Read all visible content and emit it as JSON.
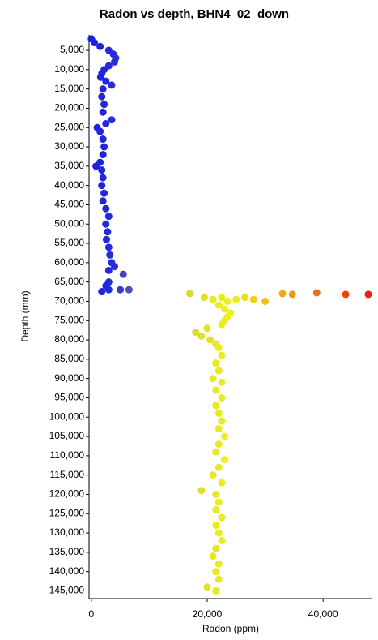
{
  "chart_data": {
    "type": "scatter",
    "title": "Radon vs depth, BHN4_02_down",
    "x_label": "Radon (ppm)",
    "y_label": "Depth (mm)",
    "y_inverted": true,
    "xlim": [
      -400,
      48500
    ],
    "ylim": [
      1000,
      147000
    ],
    "xticks": [
      0,
      {
        "value": 20000,
        "label": "20,000"
      },
      {
        "value": 40000,
        "label": "40,000"
      }
    ],
    "yticks": [
      {
        "value": 5000,
        "label": "5,000"
      },
      {
        "value": 10000,
        "label": "10,000"
      },
      {
        "value": 15000,
        "label": "15,000"
      },
      {
        "value": 20000,
        "label": "20,000"
      },
      {
        "value": 25000,
        "label": "25,000"
      },
      {
        "value": 30000,
        "label": "30,000"
      },
      {
        "value": 35000,
        "label": "35,000"
      },
      {
        "value": 40000,
        "label": "40,000"
      },
      {
        "value": 45000,
        "label": "45,000"
      },
      {
        "value": 50000,
        "label": "50,000"
      },
      {
        "value": 55000,
        "label": "55,000"
      },
      {
        "value": 60000,
        "label": "60,000"
      },
      {
        "value": 65000,
        "label": "65,000"
      },
      {
        "value": 70000,
        "label": "70,000"
      },
      {
        "value": 75000,
        "label": "75,000"
      },
      {
        "value": 80000,
        "label": "80,000"
      },
      {
        "value": 85000,
        "label": "85,000"
      },
      {
        "value": 90000,
        "label": "90,000"
      },
      {
        "value": 95000,
        "label": "95,000"
      },
      {
        "value": 100000,
        "label": "100,000"
      },
      {
        "value": 105000,
        "label": "105,000"
      },
      {
        "value": 110000,
        "label": "110,000"
      },
      {
        "value": 115000,
        "label": "115,000"
      },
      {
        "value": 120000,
        "label": "120,000"
      },
      {
        "value": 125000,
        "label": "125,000"
      },
      {
        "value": 130000,
        "label": "130,000"
      },
      {
        "value": 135000,
        "label": "135,000"
      },
      {
        "value": 140000,
        "label": "140,000"
      },
      {
        "value": 145000,
        "label": "145,000"
      }
    ],
    "color_scale": [
      {
        "value": 0,
        "color": "#1a1ee0"
      },
      {
        "value": 4000,
        "color": "#2a2ed8"
      },
      {
        "value": 17000,
        "color": "#dada2a"
      },
      {
        "value": 24000,
        "color": "#f0f020"
      },
      {
        "value": 33000,
        "color": "#f4a418"
      },
      {
        "value": 48000,
        "color": "#e8200c"
      }
    ],
    "x": [
      0,
      500,
      1500,
      3000,
      3800,
      4200,
      4000,
      3000,
      2200,
      1800,
      1600,
      2500,
      3500,
      2000,
      1800,
      2200,
      2000,
      3500,
      2500,
      1000,
      1500,
      2000,
      2200,
      2000,
      1500,
      800,
      1800,
      2000,
      1800,
      2200,
      2000,
      2500,
      3000,
      2500,
      2800,
      2600,
      3000,
      3200,
      3500,
      4000,
      3000,
      5500,
      3000,
      2500,
      3000,
      5000,
      6500,
      1800,
      17000,
      19500,
      21000,
      22500,
      23500,
      25000,
      26500,
      28000,
      30000,
      33000,
      34700,
      38900,
      43900,
      47800,
      22000,
      23000,
      24000,
      23500,
      23000,
      22500,
      20000,
      18000,
      19000,
      20500,
      21500,
      22000,
      22500,
      21500,
      22000,
      21000,
      22500,
      21500,
      22500,
      21500,
      22000,
      22500,
      22000,
      23000,
      22000,
      21500,
      23000,
      22000,
      21000,
      22500,
      19000,
      21500,
      22000,
      21500,
      22500,
      21500,
      22000,
      22500,
      21500,
      21000,
      22000,
      21500,
      22000,
      20000,
      21500
    ],
    "y": [
      2000,
      3000,
      4000,
      5000,
      6000,
      7000,
      8000,
      9000,
      10000,
      11000,
      12000,
      13000,
      14000,
      15000,
      17000,
      19000,
      21000,
      23000,
      24000,
      25000,
      26000,
      28000,
      30000,
      32000,
      34000,
      35000,
      36000,
      38000,
      40000,
      42000,
      44000,
      46000,
      48000,
      50000,
      52000,
      54000,
      56000,
      58000,
      60000,
      61000,
      62000,
      63000,
      65000,
      66000,
      67000,
      67000,
      67000,
      67500,
      68000,
      69000,
      69500,
      69000,
      70000,
      69500,
      69000,
      69500,
      70000,
      68000,
      68200,
      67800,
      68200,
      68200,
      71000,
      72000,
      73000,
      74000,
      75000,
      76000,
      77000,
      78000,
      79000,
      80000,
      81000,
      82000,
      84000,
      86000,
      88000,
      90000,
      91000,
      93000,
      95000,
      97000,
      99000,
      101000,
      103000,
      105000,
      107000,
      109000,
      111000,
      113000,
      115000,
      117000,
      119000,
      120000,
      122000,
      124000,
      126000,
      128000,
      130000,
      132000,
      134000,
      136000,
      138000,
      140000,
      142000,
      144000,
      145000
    ]
  }
}
